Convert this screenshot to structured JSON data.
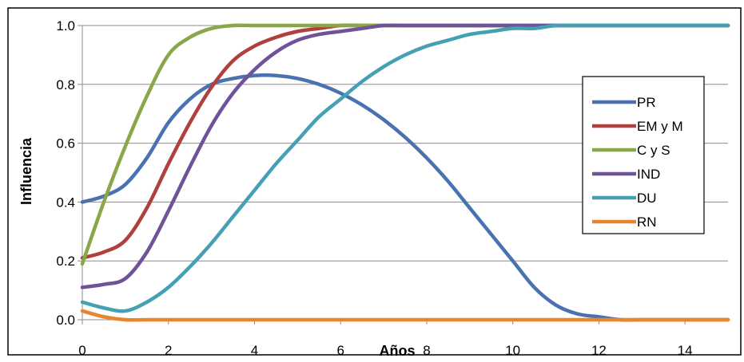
{
  "chart_data": {
    "type": "line",
    "title": "",
    "xlabel": "Años",
    "ylabel": "Influencia",
    "xlim": [
      0,
      15
    ],
    "ylim": [
      0,
      1
    ],
    "xticks": [
      "0",
      "2",
      "4",
      "6",
      "8",
      "10",
      "12",
      "14"
    ],
    "yticks": [
      "0.0",
      "0.2",
      "0.4",
      "0.6",
      "0.8",
      "1.0"
    ],
    "grid": "horizontal",
    "legend_position": "right",
    "x": [
      0,
      0.5,
      1,
      1.5,
      2,
      2.5,
      3,
      3.5,
      4,
      4.5,
      5,
      5.5,
      6,
      6.5,
      7,
      7.5,
      8,
      8.5,
      9,
      9.5,
      10,
      10.5,
      11,
      11.5,
      12,
      12.5,
      13,
      13.5,
      14,
      14.5,
      15
    ],
    "series": [
      {
        "name": "PR",
        "color": "#4a72b0",
        "values": [
          0.4,
          0.42,
          0.46,
          0.55,
          0.67,
          0.75,
          0.8,
          0.82,
          0.83,
          0.83,
          0.82,
          0.8,
          0.77,
          0.73,
          0.68,
          0.62,
          0.55,
          0.47,
          0.38,
          0.29,
          0.2,
          0.11,
          0.05,
          0.02,
          0.01,
          0.0,
          0.0,
          0.0,
          0.0,
          0.0,
          0.0
        ]
      },
      {
        "name": "EM y M",
        "color": "#b0403c",
        "values": [
          0.21,
          0.23,
          0.27,
          0.38,
          0.53,
          0.67,
          0.79,
          0.88,
          0.93,
          0.96,
          0.98,
          0.99,
          1.0,
          1.0,
          1.0,
          1.0,
          1.0,
          1.0,
          1.0,
          1.0,
          1.0,
          1.0,
          1.0,
          1.0,
          1.0,
          1.0,
          1.0,
          1.0,
          1.0,
          1.0,
          1.0
        ]
      },
      {
        "name": "C y S",
        "color": "#89a747",
        "values": [
          0.19,
          0.4,
          0.59,
          0.76,
          0.9,
          0.96,
          0.99,
          1.0,
          1.0,
          1.0,
          1.0,
          1.0,
          1.0,
          1.0,
          1.0,
          1.0,
          1.0,
          1.0,
          1.0,
          1.0,
          1.0,
          1.0,
          1.0,
          1.0,
          1.0,
          1.0,
          1.0,
          1.0,
          1.0,
          1.0,
          1.0
        ]
      },
      {
        "name": "IND",
        "color": "#6f5398",
        "values": [
          0.11,
          0.12,
          0.14,
          0.23,
          0.37,
          0.52,
          0.66,
          0.77,
          0.85,
          0.91,
          0.95,
          0.97,
          0.98,
          0.99,
          1.0,
          1.0,
          1.0,
          1.0,
          1.0,
          1.0,
          1.0,
          1.0,
          1.0,
          1.0,
          1.0,
          1.0,
          1.0,
          1.0,
          1.0,
          1.0,
          1.0
        ]
      },
      {
        "name": "DU",
        "color": "#45a0b4",
        "values": [
          0.06,
          0.04,
          0.03,
          0.06,
          0.11,
          0.18,
          0.26,
          0.35,
          0.44,
          0.53,
          0.61,
          0.69,
          0.75,
          0.81,
          0.86,
          0.9,
          0.93,
          0.95,
          0.97,
          0.98,
          0.99,
          0.99,
          1.0,
          1.0,
          1.0,
          1.0,
          1.0,
          1.0,
          1.0,
          1.0,
          1.0
        ]
      },
      {
        "name": "RN",
        "color": "#e8852f",
        "values": [
          0.03,
          0.01,
          0.0,
          0.0,
          0.0,
          0.0,
          0.0,
          0.0,
          0.0,
          0.0,
          0.0,
          0.0,
          0.0,
          0.0,
          0.0,
          0.0,
          0.0,
          0.0,
          0.0,
          0.0,
          0.0,
          0.0,
          0.0,
          0.0,
          0.0,
          0.0,
          0.0,
          0.0,
          0.0,
          0.0,
          0.0
        ]
      }
    ]
  }
}
